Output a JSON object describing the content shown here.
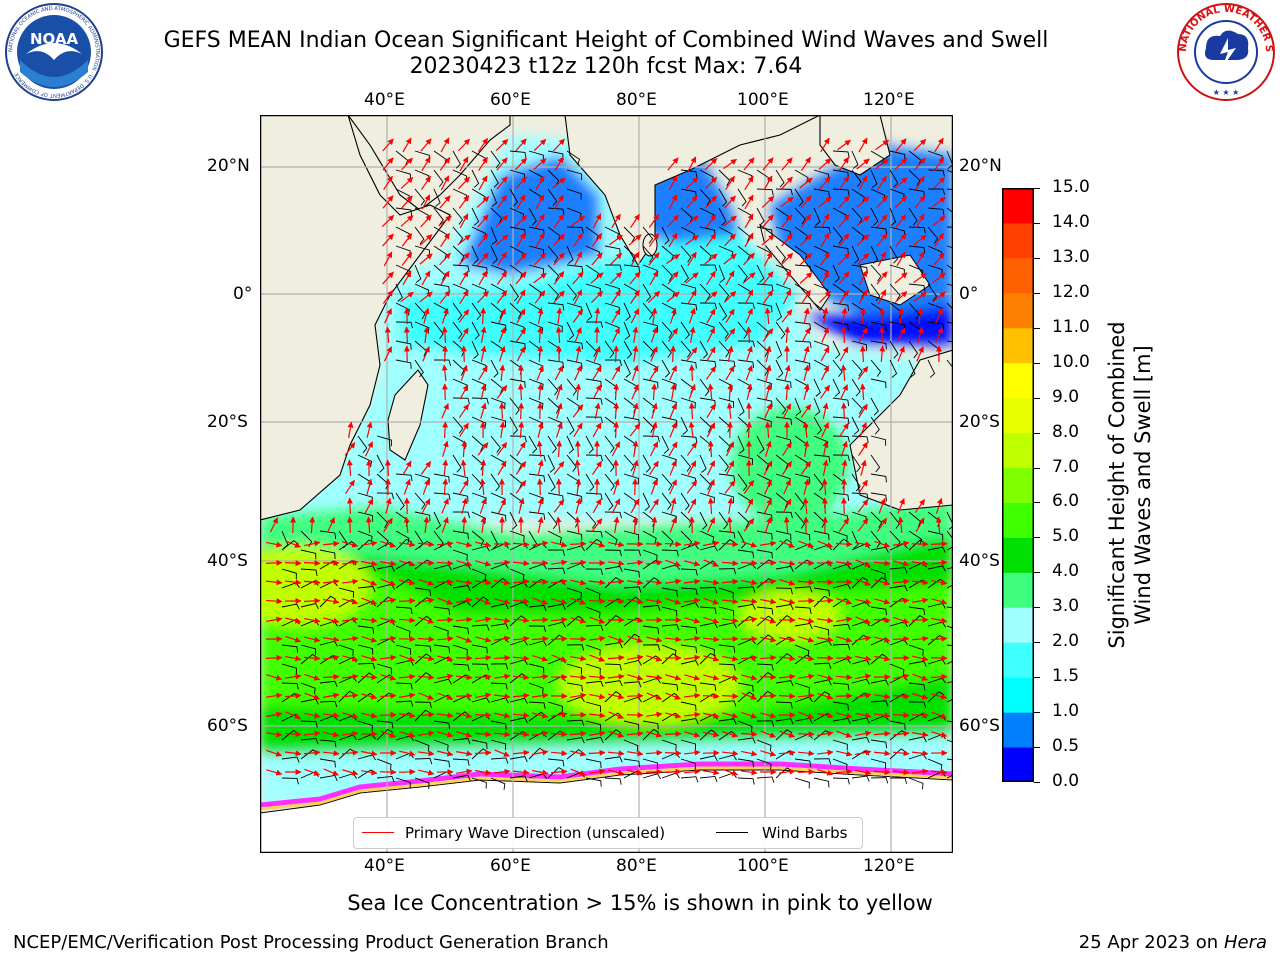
{
  "header": {
    "title_line1": "GEFS MEAN Indian Ocean Significant Height of Combined Wind Waves and Swell",
    "title_line2": "20230423 t12z 120h fcst   Max: 7.64",
    "noaa_logo_text": "NOAA",
    "noaa_ring_text": "NATIONAL OCEANIC AND ATMOSPHERIC ADMINISTRATION · U.S. DEPARTMENT OF COMMERCE",
    "nws_ring_text": "NATIONAL WEATHER SERVICE"
  },
  "map": {
    "lon_labels": [
      "40°E",
      "60°E",
      "80°E",
      "100°E",
      "120°E"
    ],
    "lat_labels": [
      "20°N",
      "0°",
      "20°S",
      "40°S",
      "60°S"
    ],
    "legend": {
      "wave_direction": "Primary Wave Direction (unscaled)",
      "wind_barbs": "Wind Barbs"
    },
    "colors": {
      "land": "#efeedf",
      "wave_arrow": "#ff0000",
      "wind_barb": "#000000",
      "ice": [
        "#ff2dff",
        "#ffd35a"
      ]
    }
  },
  "colorbar": {
    "title_line1": "Significant Height of Combined",
    "title_line2": "Wind Waves and Swell [m]",
    "ticks": [
      "15.0",
      "14.0",
      "13.0",
      "12.0",
      "11.0",
      "10.0",
      "9.0",
      "8.0",
      "7.0",
      "6.0",
      "5.0",
      "4.0",
      "3.0",
      "2.0",
      "1.5",
      "1.0",
      "0.5",
      "0.0"
    ],
    "colors_bottom_to_top": [
      "#0000ff",
      "#0080ff",
      "#00ffff",
      "#40ffff",
      "#a0ffff",
      "#40ff80",
      "#00e000",
      "#40ff00",
      "#80ff00",
      "#c0ff00",
      "#e8ff00",
      "#ffff00",
      "#ffc000",
      "#ff8000",
      "#ff6000",
      "#ff4000",
      "#ff0000"
    ]
  },
  "subtitle": "Sea Ice Concentration > 15% is shown in pink to yellow",
  "footer": {
    "left": "NCEP/EMC/Verification Post Processing Product Generation Branch",
    "right_date": "25 Apr 2023 on ",
    "right_machine": "Hera"
  }
}
